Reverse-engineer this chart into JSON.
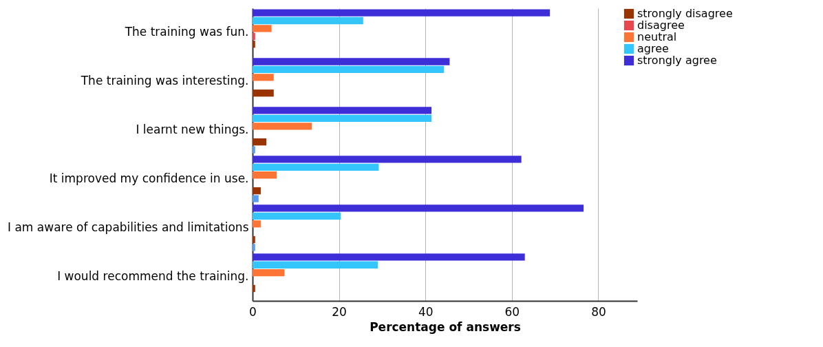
{
  "chart_data": {
    "type": "bar",
    "orientation": "horizontal",
    "xlabel": "Percentage of answers",
    "categories": [
      "The training was fun.",
      "The training was interesting.",
      "I learnt new things.",
      "It improved my confidence in use.",
      "I am aware of capabilities and limitations",
      "I would recommend the training."
    ],
    "series": [
      {
        "name": "strongly disagree",
        "color": "#993300",
        "values": [
          0.6,
          4.9,
          3.2,
          1.9,
          0.6,
          0.6
        ]
      },
      {
        "name": "disagree",
        "color": "#e8474f",
        "values": [
          0.6,
          null,
          null,
          null,
          null,
          null
        ]
      },
      {
        "name": "neutral",
        "color": "#fd7535",
        "values": [
          4.4,
          4.9,
          13.7,
          5.6,
          1.9,
          7.4
        ]
      },
      {
        "name": "agree",
        "color": "#33c5fc",
        "values": [
          25.6,
          44.3,
          41.4,
          29.2,
          20.4,
          29
        ]
      },
      {
        "name": "strongly agree",
        "color": "#3e2ed8",
        "values": [
          68.8,
          45.6,
          41.4,
          62.2,
          76.6,
          63
        ]
      },
      {
        "color": "#5a9cec",
        "values": [
          null,
          null,
          0.6,
          1.4,
          0.6,
          null
        ]
      }
    ],
    "xlim": [
      0,
      89
    ],
    "xticks": [
      0,
      20,
      40,
      60,
      80
    ],
    "grid": "x",
    "legend": "right"
  }
}
